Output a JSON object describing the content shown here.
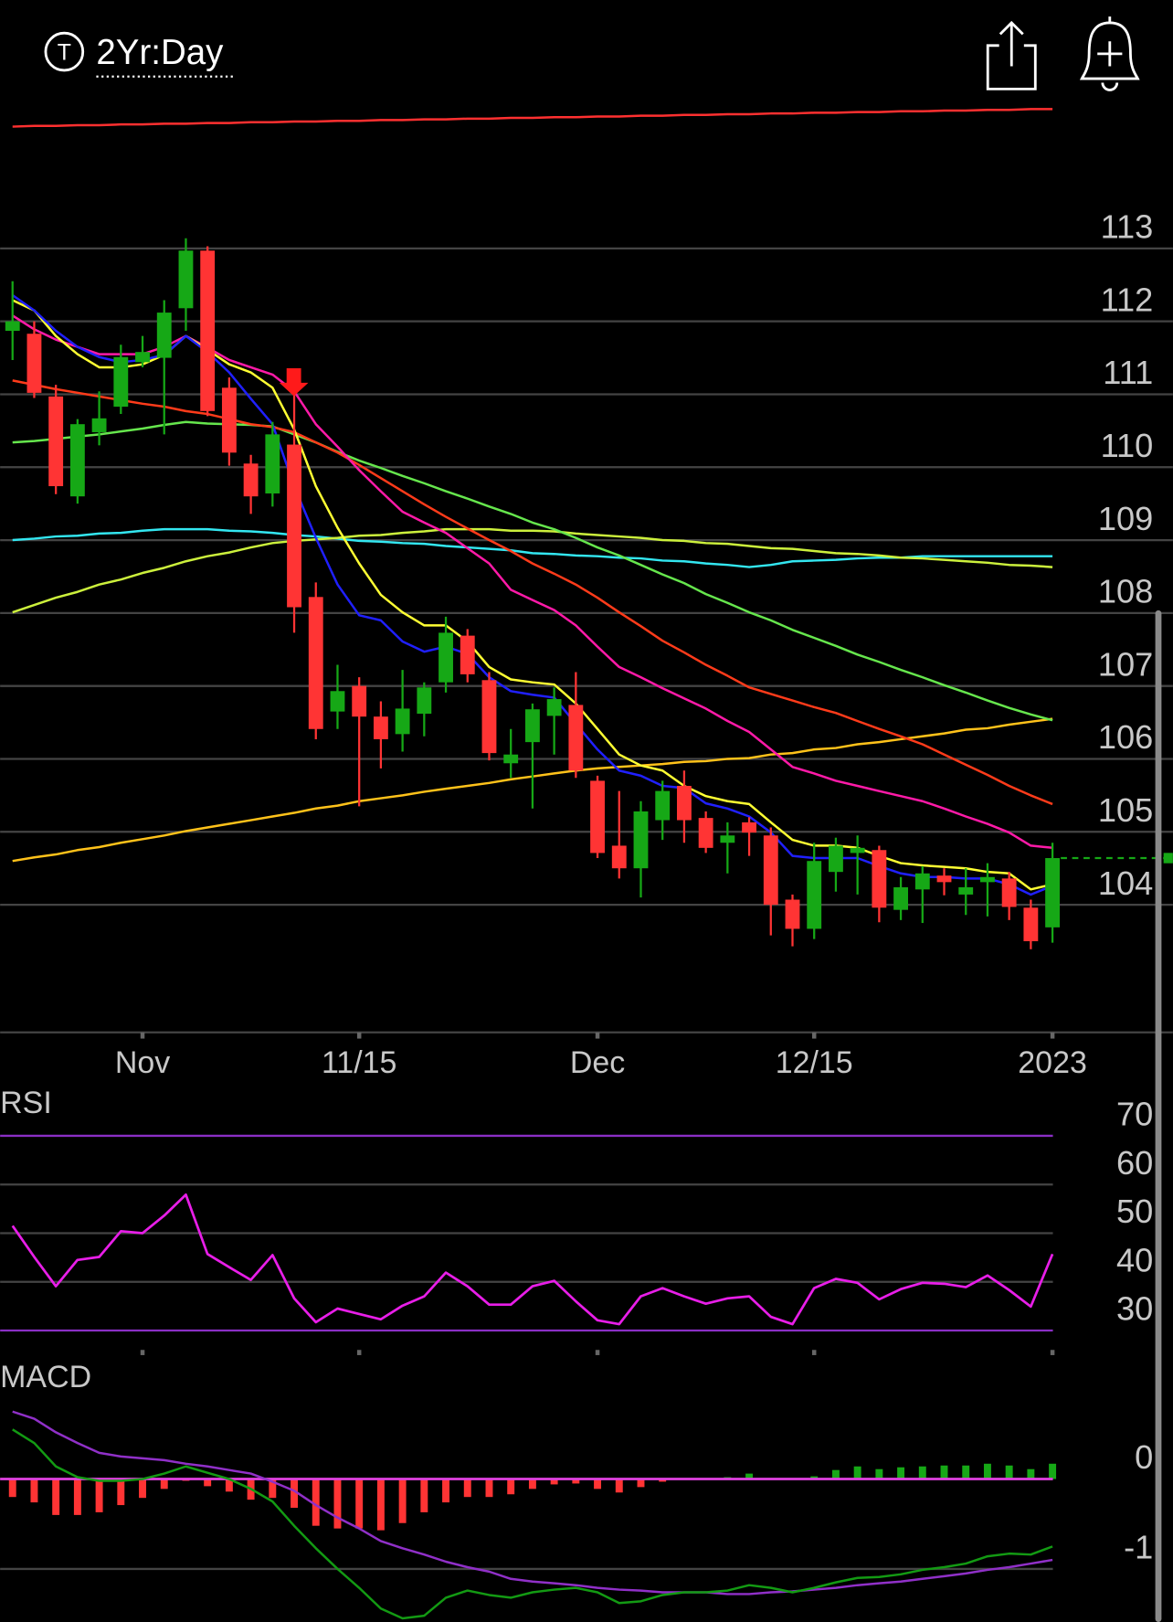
{
  "header": {
    "icon_letter": "T",
    "timeframe": "2Yr:Day"
  },
  "chart_data": [
    {
      "type": "candlestick",
      "categories": [
        null,
        null,
        null,
        null,
        null,
        null,
        "Nov",
        null,
        null,
        null,
        null,
        null,
        null,
        null,
        null,
        null,
        "11/15",
        null,
        null,
        null,
        null,
        null,
        null,
        null,
        null,
        null,
        null,
        "Dec",
        null,
        null,
        null,
        null,
        null,
        null,
        null,
        null,
        null,
        "12/15",
        null,
        null,
        null,
        null,
        null,
        null,
        null,
        null,
        null,
        null,
        "2023"
      ],
      "open": [
        111.87,
        111.83,
        110.97,
        109.6,
        110.48,
        110.83,
        111.44,
        111.5,
        112.18,
        112.97,
        111.09,
        110.05,
        109.64,
        110.31,
        108.22,
        106.65,
        107.0,
        106.58,
        106.34,
        106.62,
        107.05,
        107.69,
        107.08,
        105.94,
        106.23,
        106.59,
        106.74,
        105.7,
        104.81,
        104.5,
        105.16,
        105.63,
        105.19,
        104.85,
        105.13,
        104.95,
        104.07,
        103.67,
        104.45,
        104.71,
        104.75,
        103.93,
        104.21,
        104.4,
        104.14,
        104.31,
        104.36,
        103.96,
        103.69
      ],
      "high": [
        112.55,
        112.0,
        111.13,
        110.66,
        111.04,
        111.68,
        111.8,
        112.29,
        113.14,
        113.03,
        111.23,
        110.17,
        110.62,
        111.02,
        108.42,
        107.29,
        107.12,
        106.79,
        107.22,
        107.05,
        107.95,
        107.78,
        107.19,
        106.41,
        106.76,
        106.98,
        107.19,
        105.77,
        105.56,
        105.42,
        105.7,
        105.84,
        105.28,
        105.13,
        105.2,
        105.06,
        104.14,
        104.85,
        104.92,
        104.95,
        104.81,
        104.38,
        104.53,
        104.5,
        104.5,
        104.57,
        104.45,
        104.07,
        104.85
      ],
      "low": [
        111.47,
        110.95,
        109.63,
        109.5,
        110.3,
        110.73,
        111.37,
        110.45,
        111.87,
        110.7,
        110.02,
        109.36,
        109.46,
        107.73,
        106.27,
        106.41,
        105.35,
        105.87,
        106.1,
        106.31,
        106.91,
        107.05,
        105.98,
        105.74,
        105.32,
        106.06,
        105.74,
        104.64,
        104.36,
        104.1,
        104.89,
        104.85,
        104.71,
        104.43,
        104.67,
        103.58,
        103.43,
        103.53,
        104.18,
        104.14,
        103.76,
        103.79,
        103.75,
        104.13,
        103.86,
        103.84,
        103.79,
        103.39,
        103.48
      ],
      "close": [
        112.0,
        111.02,
        109.74,
        110.59,
        110.67,
        111.51,
        111.58,
        112.12,
        112.97,
        110.77,
        110.2,
        109.6,
        110.45,
        108.08,
        106.41,
        106.93,
        106.58,
        106.27,
        106.69,
        106.98,
        107.73,
        107.16,
        106.08,
        106.06,
        106.68,
        106.82,
        105.84,
        104.71,
        104.5,
        105.28,
        105.56,
        105.16,
        104.78,
        104.95,
        104.99,
        104.0,
        103.67,
        104.6,
        104.81,
        104.78,
        103.96,
        104.24,
        104.43,
        104.31,
        104.24,
        104.38,
        103.97,
        103.5,
        104.64
      ],
      "colors": {
        "up": "#16a816",
        "down": "#ff3434"
      },
      "overlays": [
        {
          "color": "#ff3030",
          "values": [
            114.67,
            114.68,
            114.68,
            114.69,
            114.69,
            114.7,
            114.7,
            114.71,
            114.71,
            114.72,
            114.72,
            114.73,
            114.73,
            114.74,
            114.74,
            114.75,
            114.75,
            114.76,
            114.76,
            114.77,
            114.77,
            114.78,
            114.78,
            114.79,
            114.79,
            114.8,
            114.8,
            114.81,
            114.81,
            114.82,
            114.82,
            114.83,
            114.83,
            114.84,
            114.84,
            114.85,
            114.85,
            114.86,
            114.86,
            114.87,
            114.87,
            114.88,
            114.88,
            114.89,
            114.89,
            114.9,
            114.9,
            114.91,
            114.91
          ]
        },
        {
          "color": "#ffc21a",
          "values": [
            104.6,
            104.65,
            104.69,
            104.75,
            104.79,
            104.85,
            104.9,
            104.95,
            105.01,
            105.06,
            105.11,
            105.16,
            105.21,
            105.26,
            105.32,
            105.36,
            105.42,
            105.46,
            105.5,
            105.55,
            105.59,
            105.63,
            105.67,
            105.72,
            105.76,
            105.8,
            105.84,
            105.87,
            105.89,
            105.91,
            105.93,
            105.96,
            105.97,
            106.0,
            106.01,
            106.06,
            106.08,
            106.13,
            106.15,
            106.2,
            106.23,
            106.27,
            106.31,
            106.35,
            106.4,
            106.42,
            106.47,
            106.51,
            106.55
          ]
        },
        {
          "color": "#33e6f0",
          "values": [
            109.0,
            109.02,
            109.05,
            109.06,
            109.09,
            109.1,
            109.13,
            109.15,
            109.15,
            109.15,
            109.13,
            109.12,
            109.1,
            109.07,
            109.05,
            109.02,
            108.99,
            108.98,
            108.96,
            108.95,
            108.92,
            108.9,
            108.88,
            108.86,
            108.82,
            108.81,
            108.79,
            108.78,
            108.76,
            108.75,
            108.72,
            108.71,
            108.68,
            108.66,
            108.63,
            108.66,
            108.71,
            108.72,
            108.73,
            108.75,
            108.76,
            108.76,
            108.78,
            108.78,
            108.78,
            108.78,
            108.78,
            108.78,
            108.78
          ]
        },
        {
          "color": "#ccf03c",
          "values": [
            108.01,
            108.11,
            108.21,
            108.29,
            108.39,
            108.46,
            108.55,
            108.62,
            108.71,
            108.78,
            108.83,
            108.9,
            108.96,
            108.99,
            109.01,
            109.03,
            109.06,
            109.07,
            109.1,
            109.12,
            109.15,
            109.15,
            109.15,
            109.13,
            109.13,
            109.12,
            109.09,
            109.07,
            109.05,
            109.03,
            109.0,
            108.99,
            108.96,
            108.95,
            108.92,
            108.89,
            108.88,
            108.85,
            108.82,
            108.81,
            108.79,
            108.76,
            108.75,
            108.73,
            108.71,
            108.69,
            108.66,
            108.65,
            108.63
          ]
        },
        {
          "color": "#66e64d",
          "values": [
            110.34,
            110.36,
            110.39,
            110.42,
            110.45,
            110.49,
            110.53,
            110.58,
            110.62,
            110.6,
            110.59,
            110.58,
            110.56,
            110.45,
            110.34,
            110.21,
            110.09,
            109.99,
            109.88,
            109.78,
            109.67,
            109.57,
            109.46,
            109.36,
            109.24,
            109.15,
            109.03,
            108.9,
            108.79,
            108.66,
            108.53,
            108.41,
            108.26,
            108.14,
            108.01,
            107.9,
            107.77,
            107.66,
            107.55,
            107.43,
            107.33,
            107.22,
            107.12,
            107.01,
            106.91,
            106.8,
            106.7,
            106.61,
            106.53
          ]
        },
        {
          "color": "#ff3b1a",
          "values": [
            111.19,
            111.13,
            111.07,
            111.02,
            110.97,
            110.92,
            110.87,
            110.83,
            110.77,
            110.73,
            110.66,
            110.59,
            110.55,
            110.48,
            110.34,
            110.2,
            110.03,
            109.85,
            109.67,
            109.49,
            109.32,
            109.16,
            109.0,
            108.85,
            108.68,
            108.54,
            108.39,
            108.21,
            108.01,
            107.82,
            107.62,
            107.46,
            107.29,
            107.14,
            106.98,
            106.89,
            106.8,
            106.71,
            106.63,
            106.52,
            106.41,
            106.31,
            106.2,
            106.06,
            105.92,
            105.78,
            105.63,
            105.5,
            105.38
          ]
        },
        {
          "color": "#ff1aa8",
          "values": [
            112.08,
            111.89,
            111.75,
            111.65,
            111.55,
            111.55,
            111.55,
            111.65,
            111.8,
            111.64,
            111.47,
            111.37,
            111.27,
            111.04,
            110.59,
            110.28,
            109.96,
            109.67,
            109.39,
            109.24,
            109.1,
            108.89,
            108.68,
            108.32,
            108.18,
            108.04,
            107.83,
            107.54,
            107.26,
            107.12,
            106.97,
            106.83,
            106.69,
            106.52,
            106.37,
            106.13,
            105.89,
            105.8,
            105.7,
            105.63,
            105.56,
            105.49,
            105.42,
            105.32,
            105.21,
            105.11,
            104.99,
            104.81,
            104.78
          ]
        },
        {
          "color": "#ffff33",
          "values": [
            112.29,
            112.15,
            111.8,
            111.55,
            111.37,
            111.37,
            111.41,
            111.54,
            111.8,
            111.61,
            111.41,
            111.3,
            111.09,
            110.52,
            109.74,
            109.17,
            108.68,
            108.25,
            108.01,
            107.83,
            107.83,
            107.61,
            107.26,
            107.09,
            107.05,
            107.02,
            106.76,
            106.41,
            106.06,
            105.91,
            105.84,
            105.63,
            105.49,
            105.42,
            105.38,
            105.13,
            104.89,
            104.81,
            104.81,
            104.78,
            104.67,
            104.57,
            104.54,
            104.52,
            104.5,
            104.45,
            104.43,
            104.21,
            104.28
          ]
        },
        {
          "color": "#2020ff",
          "values": [
            112.36,
            112.15,
            111.87,
            111.65,
            111.51,
            111.44,
            111.47,
            111.54,
            111.8,
            111.58,
            111.3,
            110.94,
            110.59,
            109.74,
            109.03,
            108.39,
            107.97,
            107.9,
            107.61,
            107.47,
            107.54,
            107.44,
            107.12,
            106.93,
            106.88,
            106.84,
            106.48,
            106.13,
            105.84,
            105.77,
            105.63,
            105.6,
            105.39,
            105.32,
            105.21,
            104.99,
            104.67,
            104.64,
            104.64,
            104.64,
            104.53,
            104.43,
            104.38,
            104.38,
            104.36,
            104.36,
            104.28,
            104.14,
            104.26
          ]
        }
      ],
      "ylim": [
        102.25,
        115.13
      ],
      "yticks": [
        104,
        105,
        106,
        107,
        108,
        109,
        110,
        111,
        112,
        113
      ],
      "grid": true
    },
    {
      "type": "line",
      "title": "RSI",
      "series": [
        {
          "color": "#e81ee8",
          "values": [
            51.5,
            45.1,
            39.1,
            44.5,
            45.1,
            50.4,
            50.0,
            53.6,
            57.9,
            45.7,
            43.0,
            40.4,
            45.5,
            36.6,
            31.7,
            34.5,
            33.4,
            32.3,
            35.1,
            37.0,
            41.9,
            39.1,
            35.3,
            35.3,
            39.1,
            40.2,
            36.0,
            32.1,
            31.3,
            37.0,
            38.7,
            37.0,
            35.5,
            36.6,
            37.0,
            32.8,
            31.3,
            38.7,
            40.6,
            39.8,
            36.4,
            38.5,
            39.8,
            39.6,
            38.9,
            41.3,
            38.3,
            34.9,
            45.7
          ]
        }
      ],
      "ylim": [
        26,
        80.2
      ],
      "yticks": [
        30,
        40,
        50,
        60,
        70
      ],
      "band_color": "#8a2fc4",
      "grid": true
    },
    {
      "type": "macd",
      "title": "MACD",
      "macd": {
        "color": "#139a13",
        "values": [
          0.55,
          0.4,
          0.14,
          0.02,
          -0.02,
          -0.02,
          0,
          0.06,
          0.14,
          0.07,
          0,
          -0.11,
          -0.25,
          -0.52,
          -0.77,
          -1.0,
          -1.21,
          -1.44,
          -1.55,
          -1.52,
          -1.32,
          -1.24,
          -1.29,
          -1.32,
          -1.26,
          -1.23,
          -1.21,
          -1.26,
          -1.38,
          -1.36,
          -1.29,
          -1.26,
          -1.26,
          -1.24,
          -1.18,
          -1.21,
          -1.26,
          -1.21,
          -1.15,
          -1.1,
          -1.09,
          -1.06,
          -1.01,
          -0.98,
          -0.94,
          -0.86,
          -0.83,
          -0.84,
          -0.75
        ]
      },
      "signal": {
        "color": "#9030c8",
        "values": [
          0.75,
          0.67,
          0.52,
          0.4,
          0.29,
          0.25,
          0.23,
          0.21,
          0.17,
          0.14,
          0.1,
          0.06,
          -0.03,
          -0.13,
          -0.29,
          -0.43,
          -0.55,
          -0.69,
          -0.77,
          -0.84,
          -0.92,
          -0.98,
          -1.03,
          -1.11,
          -1.14,
          -1.16,
          -1.18,
          -1.21,
          -1.23,
          -1.24,
          -1.26,
          -1.26,
          -1.26,
          -1.28,
          -1.28,
          -1.26,
          -1.25,
          -1.23,
          -1.21,
          -1.18,
          -1.16,
          -1.14,
          -1.11,
          -1.08,
          -1.05,
          -1.01,
          -0.98,
          -0.94,
          -0.9
        ]
      },
      "histogram": {
        "values": [
          -0.2,
          -0.26,
          -0.4,
          -0.4,
          -0.37,
          -0.29,
          -0.21,
          -0.11,
          -0.02,
          -0.08,
          -0.14,
          -0.23,
          -0.21,
          -0.32,
          -0.52,
          -0.55,
          -0.55,
          -0.57,
          -0.49,
          -0.37,
          -0.26,
          -0.2,
          -0.2,
          -0.17,
          -0.11,
          -0.06,
          -0.05,
          -0.11,
          -0.15,
          -0.09,
          -0.03,
          -0.01,
          0,
          0.02,
          0.06,
          0,
          0,
          0.03,
          0.1,
          0.14,
          0.11,
          0.13,
          0.14,
          0.15,
          0.15,
          0.17,
          0.15,
          0.11,
          0.17
        ]
      },
      "colors": {
        "up": "#16a816",
        "down": "#ff3434"
      },
      "zero_color": "#e040e0",
      "ylim": [
        -1.59,
        1.32
      ],
      "yticks": [
        -1,
        0
      ],
      "grid": true
    }
  ]
}
